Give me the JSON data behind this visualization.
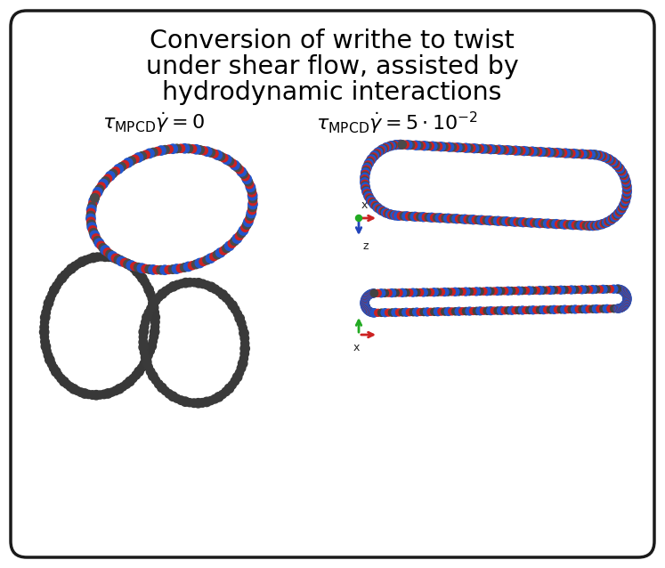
{
  "title_line1": "Conversion of writhe to twist",
  "title_line2": "under shear flow, assisted by",
  "title_line3": "hydrodynamic interactions",
  "bg_color": "#ffffff",
  "border_color": "#1a1a1a",
  "title_fontsize": 20.5,
  "label_fontsize": 16,
  "fig_width": 7.47,
  "fig_height": 6.38,
  "dpi": 100,
  "gray": "#4a4a4a",
  "blue": "#2255cc",
  "red": "#cc2222",
  "dark_gray": "#3a3a3a"
}
